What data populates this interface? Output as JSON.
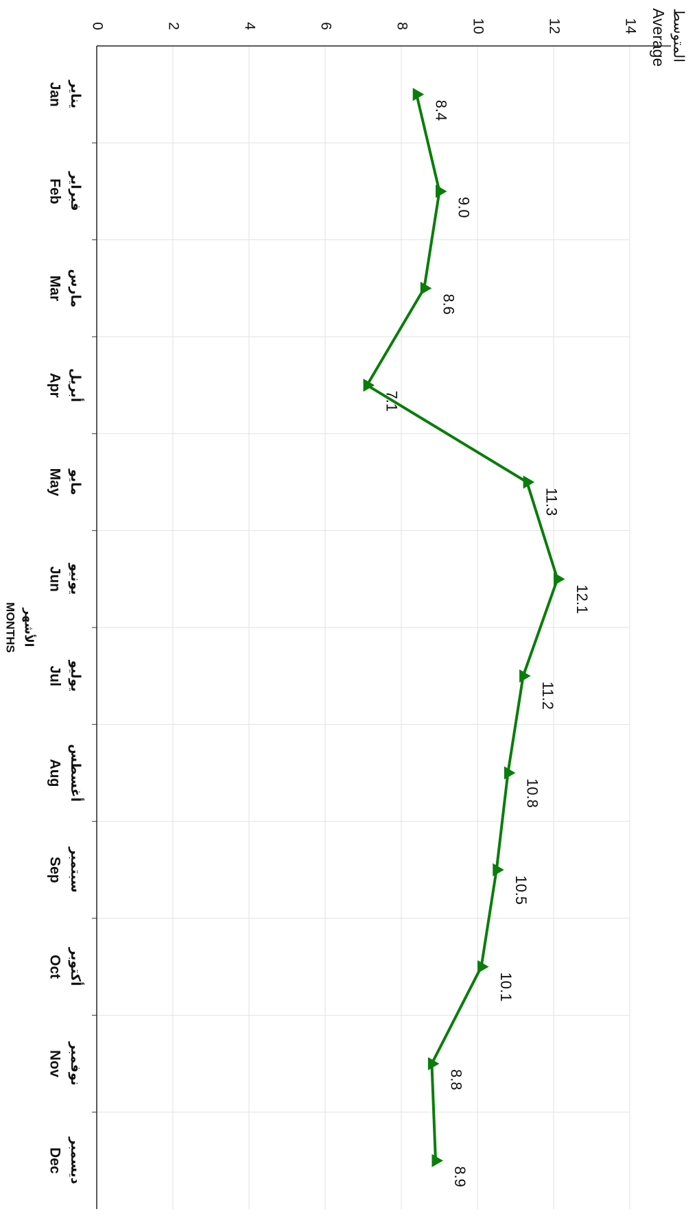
{
  "chart_data": {
    "type": "line",
    "y_title_ar": "المتوسط",
    "y_title": "Average",
    "x_title": "MONTHS",
    "x_title_ar": "الأشهر",
    "categories": [
      "Jan",
      "Feb",
      "Mar",
      "Apr",
      "May",
      "Jun",
      "Jul",
      "Aug",
      "Sep",
      "Oct",
      "Nov",
      "Dec"
    ],
    "categories_ar": [
      "يناير",
      "فبراير",
      "مارس",
      "أبريل",
      "مايو",
      "يونيو",
      "يوليو",
      "أغسطس",
      "سبتمبر",
      "أكتوبر",
      "نوفمبر",
      "ديسمبر"
    ],
    "series": [
      {
        "color": "#0a7d0a",
        "values": [
          8.4,
          9.0,
          8.6,
          7.1,
          11.3,
          12.1,
          11.2,
          10.8,
          10.5,
          10.1,
          8.8,
          8.9
        ],
        "value_labels": [
          "8.4",
          "9.0",
          "8.6",
          "7.1",
          "11.3",
          "12.1",
          "11.2",
          "10.8",
          "10.5",
          "10.1",
          "8.8",
          "8.9"
        ]
      }
    ],
    "ylim": [
      0,
      14
    ],
    "yticks": [
      0,
      2,
      4,
      6,
      8,
      10,
      12,
      14
    ],
    "grid": true
  }
}
